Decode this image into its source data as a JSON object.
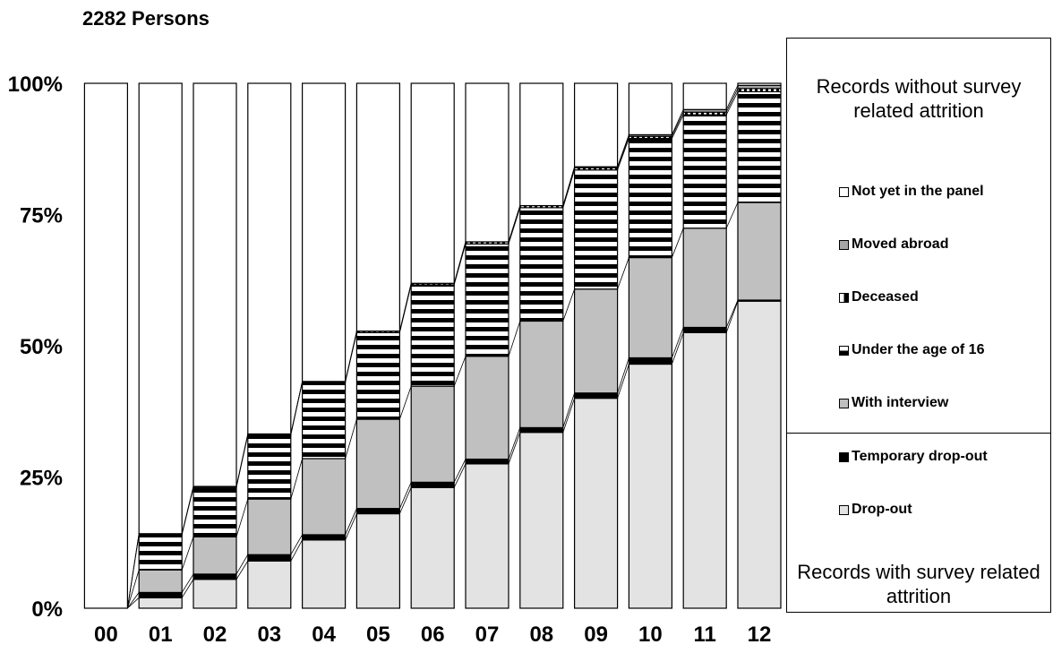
{
  "title": "2282 Persons",
  "chart_data": {
    "type": "bar",
    "stacked": true,
    "categories": [
      "00",
      "01",
      "02",
      "03",
      "04",
      "05",
      "06",
      "07",
      "08",
      "09",
      "10",
      "11",
      "12"
    ],
    "ylim": [
      0,
      100
    ],
    "yticks": [
      "0%",
      "25%",
      "50%",
      "75%",
      "100%"
    ],
    "series": [
      {
        "name": "Drop-out",
        "color": "#e3e3e3",
        "pattern": "solid",
        "values": [
          0,
          2.0,
          5.5,
          9.0,
          13.0,
          18.0,
          23.0,
          27.5,
          33.5,
          40.0,
          46.5,
          52.5,
          58.5
        ]
      },
      {
        "name": "Temporary drop-out",
        "color": "#000000",
        "pattern": "solid",
        "values": [
          0,
          1.0,
          1.0,
          1.2,
          1.0,
          1.0,
          1.0,
          0.9,
          0.9,
          1.0,
          1.2,
          1.0,
          0.2
        ]
      },
      {
        "name": "With interview",
        "color": "#c0c0c0",
        "pattern": "solid",
        "values": [
          0,
          4.3,
          7.1,
          10.6,
          14.5,
          17.0,
          18.3,
          19.6,
          20.3,
          19.8,
          19.1,
          18.9,
          18.6
        ]
      },
      {
        "name": "Under the age of 16",
        "color": "#ffffff",
        "pattern": "hstripe",
        "values": [
          0,
          6.7,
          9.4,
          12.2,
          14.5,
          16.5,
          19.3,
          21.4,
          21.6,
          22.7,
          22.7,
          21.6,
          21.1
        ]
      },
      {
        "name": "Deceased",
        "color": "#ffffff",
        "pattern": "vhalf",
        "values": [
          0,
          0.2,
          0.2,
          0.2,
          0.2,
          0.3,
          0.3,
          0.4,
          0.4,
          0.4,
          0.4,
          0.5,
          0.6
        ]
      },
      {
        "name": "Moved abroad",
        "color": "#a6a6a6",
        "pattern": "solid",
        "values": [
          0,
          0,
          0,
          0,
          0,
          0,
          0,
          0,
          0,
          0.2,
          0.3,
          0.5,
          0.6
        ]
      },
      {
        "name": "Not yet in the panel",
        "color": "#ffffff",
        "pattern": "solid",
        "values": [
          100,
          85.8,
          76.8,
          66.8,
          56.8,
          47.2,
          38.1,
          30.2,
          23.3,
          15.9,
          9.8,
          5.0,
          0.4
        ]
      }
    ]
  },
  "legend": {
    "heading_top": "Records without survey related attrition",
    "heading_bottom": "Records with survey related attrition",
    "items": [
      {
        "label": "Not yet in the panel",
        "swatch": "#ffffff"
      },
      {
        "label": "Moved abroad",
        "swatch": "#a6a6a6"
      },
      {
        "label": "Deceased",
        "swatch": "vhalf"
      },
      {
        "label": "Under the age of 16",
        "swatch": "hhalf"
      },
      {
        "label": "With interview",
        "swatch": "#c0c0c0"
      },
      {
        "label": "Temporary drop-out",
        "swatch": "#000000"
      },
      {
        "label": "Drop-out",
        "swatch": "#e3e3e3"
      }
    ]
  }
}
